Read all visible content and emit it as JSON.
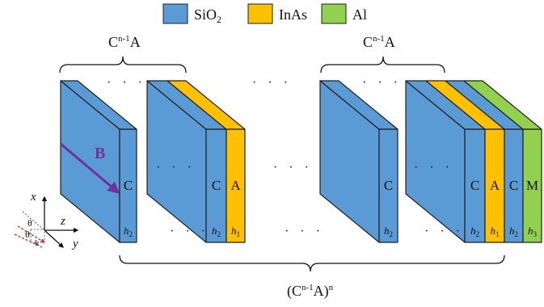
{
  "legend": [
    {
      "label_main": "SiO",
      "label_sub": "2",
      "color": "#5b9bd5"
    },
    {
      "label_main": "InAs",
      "label_sub": "",
      "color": "#ffc000"
    },
    {
      "label_main": "Al",
      "label_sub": "",
      "color": "#92d050"
    }
  ],
  "brace_labels": {
    "left": {
      "base": "C",
      "sup": "n-1",
      "tail": "A"
    },
    "right": {
      "base": "C",
      "sup": "n-1",
      "tail": "A"
    },
    "bottom": {
      "open": "(C",
      "sup": "n-1",
      "mid": "A)",
      "sup2": "n"
    }
  },
  "field_label": "B",
  "layers": {
    "C": "C",
    "A": "A",
    "M": "M"
  },
  "thickness": {
    "h2": {
      "base": "h",
      "sub": "2"
    },
    "h1": {
      "base": "h",
      "sub": "1"
    },
    "h3": {
      "base": "h",
      "sub": "3"
    }
  },
  "ellipsis": "· · ·",
  "axes": {
    "x": "x",
    "y": "y",
    "z": "z",
    "theta": "θ",
    "k": "k"
  },
  "colors": {
    "sio2": "#5b9bd5",
    "inas": "#ffc000",
    "al": "#92d050",
    "stroke": "#1f1f1f",
    "arrow": "#7030a0"
  }
}
